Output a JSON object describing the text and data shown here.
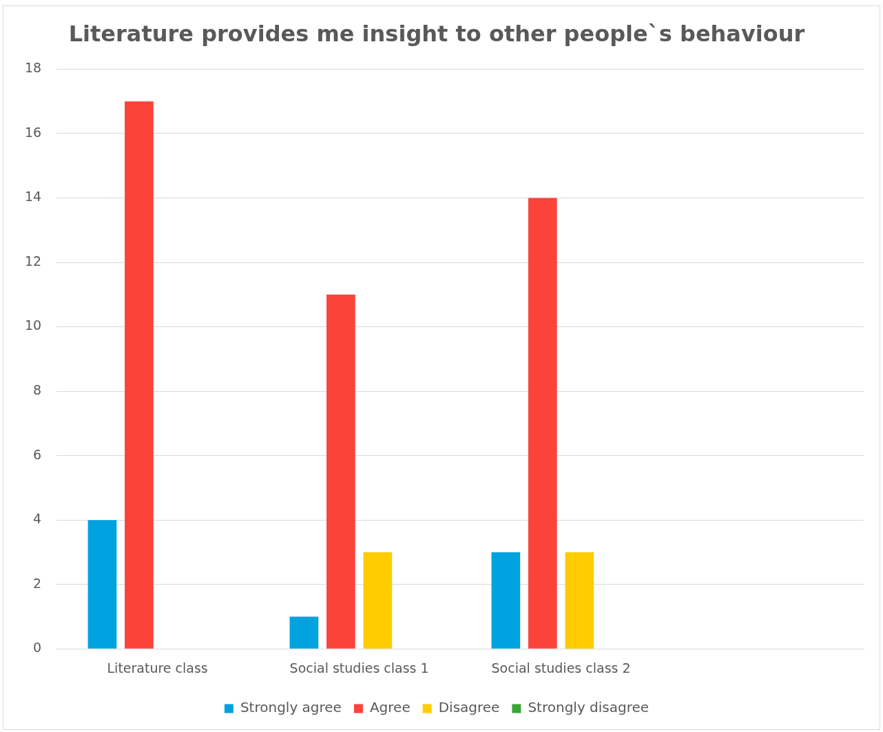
{
  "chart_data": {
    "type": "bar",
    "title": "Literature provides me insight to other people`s behaviour",
    "categories": [
      "Literature class",
      "Social studies class 1",
      "Social studies class 2",
      null
    ],
    "series": [
      {
        "name": "Strongly agree",
        "color": "#00a2e0",
        "values": [
          4,
          1,
          3,
          null
        ]
      },
      {
        "name": "Agree",
        "color": "#fb433a",
        "values": [
          17,
          11,
          14,
          null
        ]
      },
      {
        "name": "Disagree",
        "color": "#ffcc00",
        "values": [
          null,
          3,
          3,
          null
        ]
      },
      {
        "name": "Strongly disagree",
        "color": "#3aa635",
        "values": [
          null,
          null,
          null,
          null
        ]
      }
    ],
    "ylim": [
      0,
      18
    ],
    "yticks": [
      0,
      2,
      4,
      6,
      8,
      10,
      12,
      14,
      16,
      18
    ],
    "grid": "y",
    "legend": "bottom"
  }
}
